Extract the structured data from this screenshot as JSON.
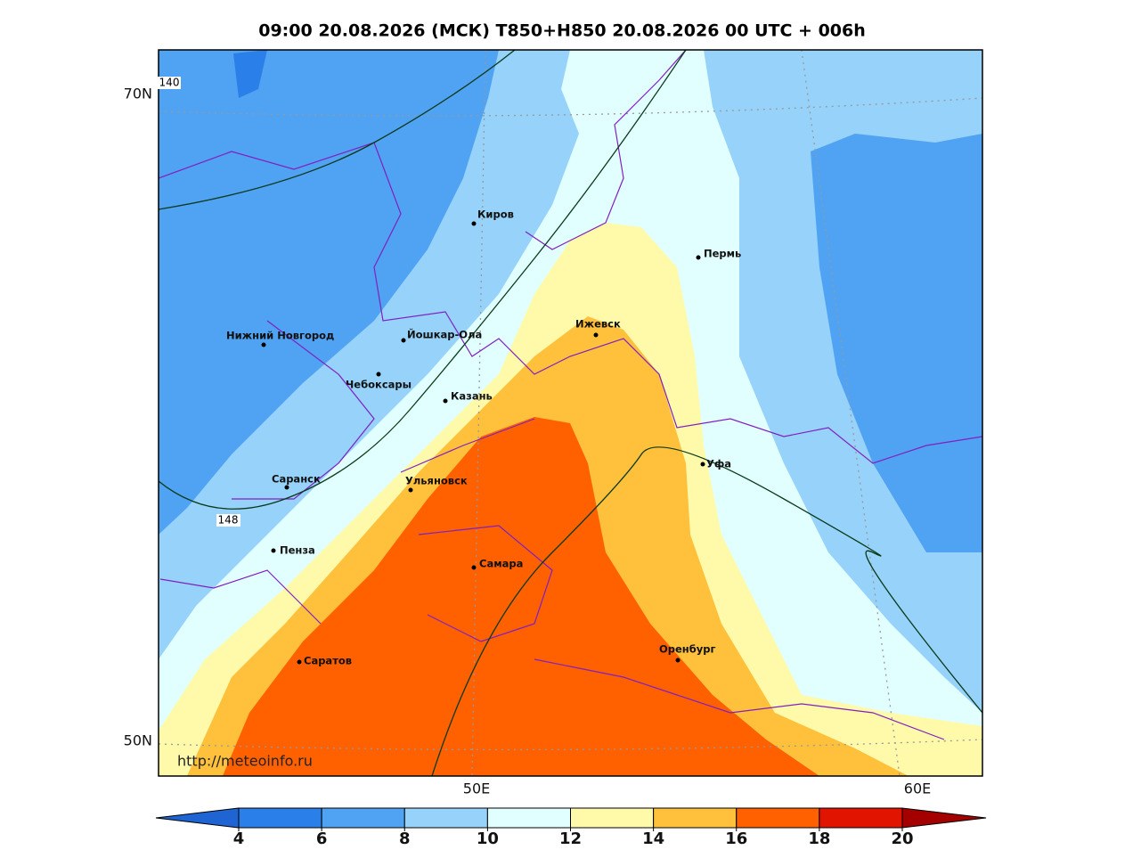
{
  "title": "09:00 20.08.2026 (МСК) T850+H850 20.08.2026 00 UTC + 006h",
  "map": {
    "lat_labels": [
      "70N",
      "50N"
    ],
    "lon_labels": [
      "50E",
      "60E"
    ],
    "contour_labels": [
      "140",
      "148"
    ],
    "credit": "http://meteoinfo.ru",
    "cities": [
      "Киров",
      "Пермь",
      "Нижний Новгород",
      "Йошкар-Ола",
      "Ижевск",
      "Чебоксары",
      "Казань",
      "Ульяновск",
      "Саранск",
      "Уфа",
      "Пенза",
      "Самара",
      "Саратов",
      "Оренбург"
    ]
  },
  "colorbar": {
    "levels": [
      4,
      6,
      8,
      10,
      12,
      14,
      16,
      18,
      20
    ],
    "colors": [
      "#1e64d2",
      "#2a80e8",
      "#50a2f2",
      "#96d2fa",
      "#e1ffff",
      "#fffaaa",
      "#ffc03c",
      "#ff6000",
      "#e11400",
      "#a50000"
    ]
  }
}
